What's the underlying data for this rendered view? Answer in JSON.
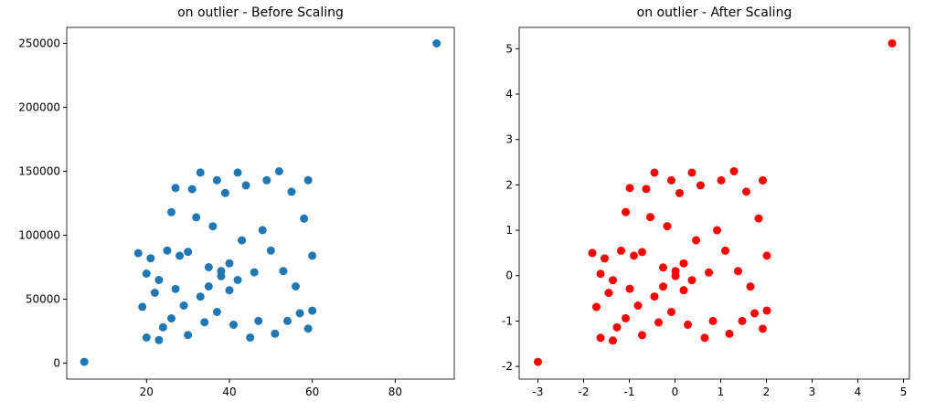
{
  "chart_data": [
    {
      "type": "scatter",
      "title": "on outlier - Before Scaling",
      "color": "#1f77b4",
      "x": [
        18,
        19,
        20,
        20,
        21,
        22,
        23,
        23,
        24,
        25,
        26,
        26,
        27,
        27,
        28,
        29,
        30,
        30,
        31,
        32,
        33,
        33,
        34,
        35,
        35,
        36,
        37,
        37,
        38,
        38,
        39,
        40,
        40,
        41,
        42,
        42,
        43,
        44,
        45,
        46,
        47,
        48,
        49,
        50,
        51,
        52,
        53,
        54,
        55,
        56,
        57,
        58,
        59,
        59,
        60,
        60,
        5,
        90
      ],
      "y": [
        86000,
        44000,
        20000,
        70000,
        82000,
        55000,
        18000,
        65000,
        28000,
        88000,
        35000,
        118000,
        137000,
        58000,
        84000,
        45000,
        22000,
        87000,
        136000,
        114000,
        149000,
        52000,
        32000,
        75000,
        60000,
        107000,
        143000,
        40000,
        68000,
        72000,
        133000,
        57000,
        78000,
        30000,
        149000,
        65000,
        96000,
        139000,
        20000,
        71000,
        33000,
        104000,
        143000,
        88000,
        23000,
        150000,
        72000,
        33000,
        134000,
        60000,
        39000,
        113000,
        143000,
        27000,
        84000,
        41000,
        1000,
        250000
      ],
      "xlim": [
        0.75,
        94.25
      ],
      "ylim": [
        -12500,
        262500
      ],
      "xticks": [
        20,
        40,
        60,
        80
      ],
      "yticks": [
        0,
        50000,
        100000,
        150000,
        200000,
        250000
      ]
    },
    {
      "type": "scatter",
      "title": "on outlier - After Scaling",
      "color": "#ff0000",
      "x": [
        -1.81,
        -1.72,
        -1.63,
        -1.63,
        -1.54,
        -1.45,
        -1.36,
        -1.36,
        -1.27,
        -1.18,
        -1.08,
        -1.08,
        -0.99,
        -0.99,
        -0.9,
        -0.81,
        -0.72,
        -0.72,
        -0.63,
        -0.54,
        -0.45,
        -0.45,
        -0.36,
        -0.26,
        -0.26,
        -0.17,
        -0.08,
        -0.08,
        0.01,
        0.01,
        0.1,
        0.19,
        0.19,
        0.28,
        0.37,
        0.37,
        0.46,
        0.56,
        0.65,
        0.74,
        0.83,
        0.92,
        1.01,
        1.1,
        1.19,
        1.29,
        1.38,
        1.47,
        1.56,
        1.65,
        1.74,
        1.83,
        1.92,
        1.92,
        2.01,
        2.01,
        -3.0,
        4.75
      ],
      "y": [
        0.5,
        -0.69,
        -1.37,
        0.04,
        0.38,
        -0.38,
        -1.43,
        -0.1,
        -1.14,
        0.55,
        -0.94,
        1.4,
        1.93,
        -0.29,
        0.44,
        -0.66,
        -1.31,
        0.52,
        1.91,
        1.29,
        2.27,
        -0.46,
        -1.03,
        0.18,
        -0.24,
        1.09,
        2.1,
        -0.8,
        -0.01,
        0.1,
        1.82,
        -0.32,
        0.27,
        -1.08,
        2.27,
        -0.1,
        0.78,
        1.99,
        -1.37,
        0.07,
        -1.0,
        1.0,
        2.1,
        0.55,
        -1.28,
        2.3,
        0.1,
        -1.0,
        1.85,
        -0.24,
        -0.83,
        1.26,
        2.1,
        -1.17,
        0.44,
        -0.77,
        -1.9,
        5.12
      ],
      "xlim": [
        -3.41,
        5.13
      ],
      "ylim": [
        -2.28,
        5.47
      ],
      "xticks": [
        -3,
        -2,
        -1,
        0,
        1,
        2,
        3,
        4,
        5
      ],
      "yticks": [
        -2,
        -1,
        0,
        1,
        2,
        3,
        4,
        5
      ]
    }
  ]
}
